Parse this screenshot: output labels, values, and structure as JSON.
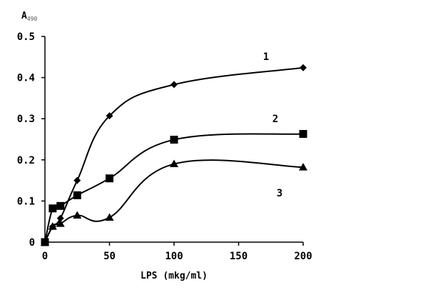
{
  "chart_data": {
    "type": "line",
    "title": "",
    "ylabel": {
      "main": "A",
      "sub": "490"
    },
    "xlabel": "LPS (mkg/ml)",
    "xlim": [
      0,
      200
    ],
    "ylim": [
      0,
      0.5
    ],
    "xticks": [
      "0",
      "50",
      "100",
      "150",
      "200"
    ],
    "yticks": [
      "0",
      "0.1",
      "0.2",
      "0.3",
      "0.4",
      "0.5"
    ],
    "grid": false,
    "series": [
      {
        "name": "1",
        "marker": "diamond",
        "x": [
          0,
          6,
          12,
          25,
          50,
          100,
          200
        ],
        "y": [
          0,
          0.038,
          0.058,
          0.15,
          0.307,
          0.383,
          0.424
        ]
      },
      {
        "name": "2",
        "marker": "square",
        "x": [
          0,
          6,
          12,
          25,
          50,
          100,
          200
        ],
        "y": [
          0,
          0.082,
          0.088,
          0.114,
          0.155,
          0.249,
          0.263
        ]
      },
      {
        "name": "3",
        "marker": "triangle",
        "x": [
          0,
          6,
          12,
          25,
          50,
          100,
          200
        ],
        "y": [
          0,
          0.038,
          0.045,
          0.065,
          0.06,
          0.19,
          0.182
        ]
      }
    ]
  }
}
